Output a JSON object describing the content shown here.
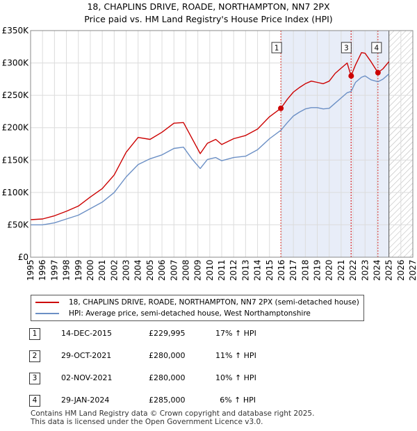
{
  "header": {
    "title_line1": "18, CHAPLINS DRIVE, ROADE, NORTHAMPTON, NN7 2PX",
    "title_line2": "Price paid vs. HM Land Registry's House Price Index (HPI)"
  },
  "chart_data": {
    "type": "line",
    "title": "18, CHAPLINS DRIVE, ROADE, NORTHAMPTON, NN7 2PX — Price paid vs. HM Land Registry's House Price Index (HPI)",
    "xlim": [
      1995,
      2027
    ],
    "ylim": [
      0,
      350000
    ],
    "x_ticks": [
      "1995",
      "1996",
      "1997",
      "1998",
      "1999",
      "2000",
      "2001",
      "2002",
      "2003",
      "2004",
      "2005",
      "2006",
      "2007",
      "2008",
      "2009",
      "2010",
      "2011",
      "2012",
      "2013",
      "2014",
      "2015",
      "2016",
      "2017",
      "2018",
      "2019",
      "2020",
      "2021",
      "2022",
      "2023",
      "2024",
      "2025",
      "2026",
      "2027"
    ],
    "y_ticks": [
      {
        "value": 0,
        "label": "£0"
      },
      {
        "value": 50000,
        "label": "£50K"
      },
      {
        "value": 100000,
        "label": "£100K"
      },
      {
        "value": 150000,
        "label": "£150K"
      },
      {
        "value": 200000,
        "label": "£200K"
      },
      {
        "value": 250000,
        "label": "£250K"
      },
      {
        "value": 300000,
        "label": "£300K"
      },
      {
        "value": 350000,
        "label": "£350K"
      }
    ],
    "grid": true,
    "forecast_start": 2025.0,
    "series": [
      {
        "name": "18, CHAPLINS DRIVE, ROADE, NORTHAMPTON, NN7 2PX (semi-detached house)",
        "color": "#cc0000",
        "points": [
          [
            1995.0,
            58000
          ],
          [
            1996.0,
            59000
          ],
          [
            1997.0,
            64000
          ],
          [
            1998.0,
            71000
          ],
          [
            1999.0,
            79000
          ],
          [
            2000.0,
            93000
          ],
          [
            2001.0,
            106000
          ],
          [
            2002.0,
            127000
          ],
          [
            2003.0,
            162000
          ],
          [
            2004.0,
            185000
          ],
          [
            2005.0,
            182000
          ],
          [
            2006.0,
            193000
          ],
          [
            2007.0,
            207000
          ],
          [
            2007.8,
            208000
          ],
          [
            2008.5,
            184000
          ],
          [
            2009.2,
            160000
          ],
          [
            2009.8,
            176000
          ],
          [
            2010.5,
            182000
          ],
          [
            2011.0,
            174000
          ],
          [
            2012.0,
            183000
          ],
          [
            2013.0,
            188000
          ],
          [
            2014.0,
            198000
          ],
          [
            2015.0,
            217000
          ],
          [
            2015.95,
            229995
          ],
          [
            2016.5,
            244000
          ],
          [
            2017.0,
            255000
          ],
          [
            2017.5,
            262000
          ],
          [
            2018.0,
            268000
          ],
          [
            2018.5,
            272000
          ],
          [
            2019.0,
            270000
          ],
          [
            2019.5,
            268000
          ],
          [
            2020.0,
            272000
          ],
          [
            2020.5,
            284000
          ],
          [
            2021.0,
            292000
          ],
          [
            2021.5,
            300000
          ],
          [
            2021.83,
            280000
          ],
          [
            2022.2,
            297000
          ],
          [
            2022.7,
            316000
          ],
          [
            2023.0,
            315000
          ],
          [
            2023.5,
            302000
          ],
          [
            2024.08,
            285000
          ],
          [
            2024.5,
            291000
          ],
          [
            2025.0,
            302000
          ]
        ]
      },
      {
        "name": "HPI: Average price, semi-detached house, West Northamptonshire",
        "color": "#6b8fc5",
        "points": [
          [
            1995.0,
            50000
          ],
          [
            1996.0,
            50000
          ],
          [
            1997.0,
            53000
          ],
          [
            1998.0,
            59000
          ],
          [
            1999.0,
            65000
          ],
          [
            2000.0,
            75000
          ],
          [
            2001.0,
            85000
          ],
          [
            2002.0,
            100000
          ],
          [
            2003.0,
            124000
          ],
          [
            2004.0,
            143000
          ],
          [
            2005.0,
            152000
          ],
          [
            2006.0,
            158000
          ],
          [
            2007.0,
            168000
          ],
          [
            2007.8,
            170000
          ],
          [
            2008.5,
            152000
          ],
          [
            2009.2,
            137000
          ],
          [
            2009.8,
            151000
          ],
          [
            2010.5,
            154000
          ],
          [
            2011.0,
            149000
          ],
          [
            2012.0,
            154000
          ],
          [
            2013.0,
            156000
          ],
          [
            2014.0,
            166000
          ],
          [
            2015.0,
            183000
          ],
          [
            2015.95,
            196000
          ],
          [
            2016.5,
            208000
          ],
          [
            2017.0,
            218000
          ],
          [
            2017.5,
            224000
          ],
          [
            2018.0,
            229000
          ],
          [
            2018.5,
            231000
          ],
          [
            2019.0,
            231000
          ],
          [
            2019.5,
            229000
          ],
          [
            2020.0,
            230000
          ],
          [
            2020.5,
            238000
          ],
          [
            2021.0,
            246000
          ],
          [
            2021.5,
            254000
          ],
          [
            2021.83,
            256000
          ],
          [
            2022.2,
            270000
          ],
          [
            2022.7,
            278000
          ],
          [
            2023.0,
            280000
          ],
          [
            2023.5,
            274000
          ],
          [
            2024.08,
            271000
          ],
          [
            2024.5,
            275000
          ],
          [
            2025.0,
            283000
          ]
        ]
      }
    ],
    "sale_markers": [
      {
        "label": "1",
        "x": 2015.95,
        "value": 229995
      },
      {
        "label": "3",
        "x": 2021.84,
        "value": 280000
      },
      {
        "label": "4",
        "x": 2024.08,
        "value": 285000
      }
    ],
    "marker_lines": [
      {
        "label": "1",
        "x": 2015.95,
        "box": true
      },
      {
        "label": "2",
        "x": 2021.83,
        "box": false
      },
      {
        "label": "3",
        "x": 2021.84,
        "box": true
      },
      {
        "label": "4",
        "x": 2024.08,
        "box": true
      }
    ]
  },
  "legend": {
    "series1_label": "18, CHAPLINS DRIVE, ROADE, NORTHAMPTON, NN7 2PX (semi-detached house)",
    "series2_label": "HPI: Average price, semi-detached house, West Northamptonshire",
    "series1_color": "#cc0000",
    "series2_color": "#6b8fc5"
  },
  "sales": [
    {
      "num": "1",
      "date": "14-DEC-2015",
      "price": "£229,995",
      "hpi": "17% ↑ HPI"
    },
    {
      "num": "2",
      "date": "29-OCT-2021",
      "price": "£280,000",
      "hpi": "11% ↑ HPI"
    },
    {
      "num": "3",
      "date": "02-NOV-2021",
      "price": "£280,000",
      "hpi": "10% ↑ HPI"
    },
    {
      "num": "4",
      "date": "29-JAN-2024",
      "price": "£285,000",
      "hpi": "6% ↑ HPI"
    }
  ],
  "footer": {
    "line1": "Contains HM Land Registry data © Crown copyright and database right 2025.",
    "line2": "This data is licensed under the Open Government Licence v3.0."
  }
}
